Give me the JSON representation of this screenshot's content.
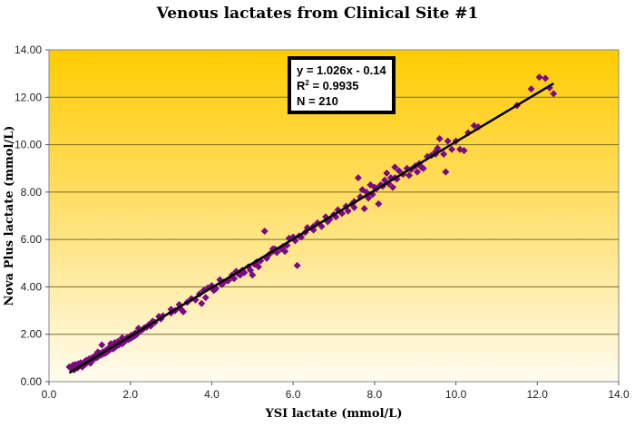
{
  "chart_data": {
    "type": "scatter",
    "title": "Venous lactates from Clinical Site #1",
    "xlabel": "YSI lactate (mmol/L)",
    "ylabel": "Nova Plus lactate (mmol/L)",
    "xlim": [
      0,
      14
    ],
    "ylim": [
      0,
      14
    ],
    "x_ticks": [
      "0.0",
      "2.0",
      "4.0",
      "6.0",
      "8.0",
      "10.0",
      "12.0",
      "14.0"
    ],
    "y_ticks": [
      "0.00",
      "2.00",
      "4.00",
      "6.00",
      "8.00",
      "10.00",
      "12.00",
      "14.00"
    ],
    "grid": "horizontal",
    "background": "gradient gold (top) to pale cream (bottom)",
    "marker_color": "#7B0A82",
    "marker": "diamond",
    "trendline": {
      "slope": 1.026,
      "intercept": -0.14,
      "x_range": [
        0.5,
        12.4
      ],
      "color": "#000000"
    },
    "annotation": {
      "line1": "y = 1.026x - 0.14",
      "line2_prefix": "R",
      "line2_sup": "2",
      "line2_suffix": " = 0.9935",
      "line3": "N = 210"
    },
    "series": [
      {
        "name": "Venous lactates",
        "points": [
          [
            0.5,
            0.62
          ],
          [
            0.55,
            0.55
          ],
          [
            0.58,
            0.68
          ],
          [
            0.6,
            0.6
          ],
          [
            0.62,
            0.5
          ],
          [
            0.65,
            0.72
          ],
          [
            0.68,
            0.63
          ],
          [
            0.7,
            0.58
          ],
          [
            0.72,
            0.75
          ],
          [
            0.75,
            0.66
          ],
          [
            0.78,
            0.8
          ],
          [
            0.8,
            0.7
          ],
          [
            0.82,
            0.62
          ],
          [
            0.85,
            0.78
          ],
          [
            0.88,
            0.85
          ],
          [
            0.9,
            0.74
          ],
          [
            0.92,
            0.9
          ],
          [
            0.95,
            0.82
          ],
          [
            0.98,
            0.95
          ],
          [
            1.0,
            0.88
          ],
          [
            1.02,
            0.78
          ],
          [
            1.05,
            1.0
          ],
          [
            1.08,
            0.92
          ],
          [
            1.1,
            1.05
          ],
          [
            1.12,
            0.98
          ],
          [
            1.15,
            1.12
          ],
          [
            1.18,
            1.02
          ],
          [
            1.2,
            1.15
          ],
          [
            1.22,
            1.08
          ],
          [
            1.25,
            1.2
          ],
          [
            1.28,
            1.12
          ],
          [
            1.3,
            1.55
          ],
          [
            1.32,
            1.25
          ],
          [
            1.35,
            1.18
          ],
          [
            1.38,
            1.3
          ],
          [
            1.4,
            1.22
          ],
          [
            1.42,
            1.35
          ],
          [
            1.45,
            1.28
          ],
          [
            1.48,
            1.42
          ],
          [
            1.5,
            1.35
          ],
          [
            1.52,
            1.6
          ],
          [
            1.55,
            1.45
          ],
          [
            1.58,
            1.38
          ],
          [
            1.6,
            1.52
          ],
          [
            1.62,
            1.65
          ],
          [
            1.65,
            1.48
          ],
          [
            1.68,
            1.58
          ],
          [
            1.7,
            1.7
          ],
          [
            1.72,
            1.55
          ],
          [
            1.75,
            1.65
          ],
          [
            1.78,
            1.72
          ],
          [
            1.8,
            1.6
          ],
          [
            1.82,
            1.78
          ],
          [
            1.85,
            1.68
          ],
          [
            1.88,
            1.8
          ],
          [
            1.9,
            1.75
          ],
          [
            1.92,
            1.85
          ],
          [
            1.95,
            1.78
          ],
          [
            1.98,
            1.9
          ],
          [
            2.0,
            1.82
          ],
          [
            2.02,
            1.95
          ],
          [
            2.05,
            1.88
          ],
          [
            2.08,
            2.0
          ],
          [
            2.1,
            1.92
          ],
          [
            2.12,
            2.05
          ],
          [
            2.15,
            1.98
          ],
          [
            2.2,
            2.1
          ],
          [
            2.25,
            2.15
          ],
          [
            2.3,
            2.2
          ],
          [
            2.35,
            2.28
          ],
          [
            2.4,
            2.3
          ],
          [
            2.45,
            2.4
          ],
          [
            2.5,
            2.45
          ],
          [
            2.55,
            2.55
          ],
          [
            2.6,
            2.5
          ],
          [
            2.7,
            2.75
          ],
          [
            2.75,
            2.65
          ],
          [
            2.8,
            2.78
          ],
          [
            3.0,
            2.9
          ],
          [
            3.1,
            3.0
          ],
          [
            3.2,
            3.25
          ],
          [
            3.25,
            3.05
          ],
          [
            3.3,
            2.95
          ],
          [
            3.4,
            3.35
          ],
          [
            3.5,
            3.5
          ],
          [
            3.6,
            3.45
          ],
          [
            3.7,
            3.7
          ],
          [
            3.75,
            3.3
          ],
          [
            3.8,
            3.85
          ],
          [
            3.85,
            3.55
          ],
          [
            3.9,
            3.95
          ],
          [
            4.0,
            4.05
          ],
          [
            4.05,
            3.85
          ],
          [
            4.1,
            3.92
          ],
          [
            4.2,
            4.3
          ],
          [
            4.25,
            4.1
          ],
          [
            4.3,
            4.2
          ],
          [
            4.4,
            4.25
          ],
          [
            4.5,
            4.5
          ],
          [
            4.55,
            4.35
          ],
          [
            4.6,
            4.65
          ],
          [
            4.65,
            4.55
          ],
          [
            4.7,
            4.5
          ],
          [
            4.75,
            4.7
          ],
          [
            4.8,
            4.6
          ],
          [
            4.9,
            4.85
          ],
          [
            4.95,
            4.7
          ],
          [
            5.0,
            4.5
          ],
          [
            5.05,
            4.95
          ],
          [
            5.1,
            5.05
          ],
          [
            5.15,
            4.85
          ],
          [
            5.2,
            5.1
          ],
          [
            5.3,
            6.35
          ],
          [
            5.35,
            5.2
          ],
          [
            5.4,
            5.35
          ],
          [
            5.5,
            5.5
          ],
          [
            5.55,
            5.6
          ],
          [
            5.6,
            5.45
          ],
          [
            5.7,
            5.6
          ],
          [
            5.75,
            5.7
          ],
          [
            5.8,
            5.5
          ],
          [
            5.85,
            5.75
          ],
          [
            5.9,
            6.05
          ],
          [
            6.0,
            6.1
          ],
          [
            6.05,
            5.95
          ],
          [
            6.1,
            4.9
          ],
          [
            6.15,
            6.15
          ],
          [
            6.2,
            6.1
          ],
          [
            6.3,
            6.3
          ],
          [
            6.35,
            6.5
          ],
          [
            6.5,
            6.4
          ],
          [
            6.6,
            6.7
          ],
          [
            6.7,
            6.55
          ],
          [
            6.8,
            6.95
          ],
          [
            6.85,
            6.75
          ],
          [
            6.9,
            6.85
          ],
          [
            7.0,
            7.05
          ],
          [
            7.05,
            6.95
          ],
          [
            7.1,
            7.25
          ],
          [
            7.2,
            7.1
          ],
          [
            7.3,
            7.4
          ],
          [
            7.35,
            7.2
          ],
          [
            7.45,
            7.5
          ],
          [
            7.5,
            7.35
          ],
          [
            7.6,
            8.6
          ],
          [
            7.65,
            7.8
          ],
          [
            7.7,
            8.1
          ],
          [
            7.75,
            7.3
          ],
          [
            7.8,
            8.0
          ],
          [
            7.85,
            7.75
          ],
          [
            7.9,
            8.3
          ],
          [
            7.95,
            7.9
          ],
          [
            8.0,
            8.2
          ],
          [
            8.05,
            8.15
          ],
          [
            8.1,
            7.5
          ],
          [
            8.15,
            8.3
          ],
          [
            8.2,
            8.25
          ],
          [
            8.25,
            8.5
          ],
          [
            8.3,
            8.8
          ],
          [
            8.35,
            8.35
          ],
          [
            8.4,
            8.6
          ],
          [
            8.45,
            8.2
          ],
          [
            8.5,
            9.05
          ],
          [
            8.55,
            8.55
          ],
          [
            8.6,
            8.9
          ],
          [
            8.7,
            8.75
          ],
          [
            8.8,
            9.0
          ],
          [
            8.85,
            8.7
          ],
          [
            8.9,
            8.95
          ],
          [
            9.0,
            9.1
          ],
          [
            9.05,
            8.85
          ],
          [
            9.1,
            9.2
          ],
          [
            9.15,
            9.05
          ],
          [
            9.2,
            9.0
          ],
          [
            9.3,
            9.5
          ],
          [
            9.4,
            9.55
          ],
          [
            9.5,
            9.7
          ],
          [
            9.55,
            9.85
          ],
          [
            9.6,
            10.25
          ],
          [
            9.7,
            9.6
          ],
          [
            9.75,
            8.85
          ],
          [
            9.8,
            10.15
          ],
          [
            9.9,
            9.8
          ],
          [
            10.0,
            10.15
          ],
          [
            10.1,
            9.8
          ],
          [
            10.2,
            9.75
          ],
          [
            10.3,
            10.5
          ],
          [
            10.45,
            10.8
          ],
          [
            10.55,
            10.75
          ],
          [
            11.5,
            11.65
          ],
          [
            11.85,
            12.35
          ],
          [
            12.05,
            12.85
          ],
          [
            12.2,
            12.8
          ],
          [
            12.3,
            12.4
          ],
          [
            12.4,
            12.15
          ],
          [
            1.0,
            0.95
          ],
          [
            1.5,
            1.48
          ],
          [
            2.5,
            2.35
          ],
          [
            3.0,
            3.05
          ],
          [
            4.5,
            4.4
          ],
          [
            5.5,
            5.6
          ],
          [
            6.5,
            6.55
          ],
          [
            7.5,
            7.6
          ],
          [
            8.5,
            8.6
          ],
          [
            9.5,
            9.6
          ],
          [
            0.6,
            0.7
          ],
          [
            0.9,
            0.85
          ],
          [
            1.2,
            1.25
          ],
          [
            1.8,
            1.85
          ],
          [
            2.2,
            2.25
          ]
        ]
      }
    ]
  }
}
